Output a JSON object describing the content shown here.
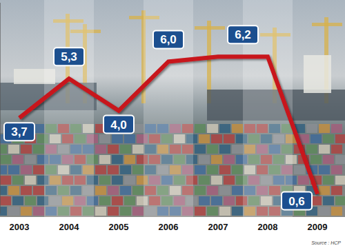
{
  "chart_data": {
    "type": "line",
    "categories": [
      "2003",
      "2004",
      "2005",
      "2006",
      "2007",
      "2008",
      "2009"
    ],
    "values": [
      3.7,
      5.3,
      4.0,
      6.0,
      6.2,
      6.2,
      0.6
    ],
    "value_labels": [
      "3,7",
      "5,3",
      "4,0",
      "6,0",
      "6,2",
      null,
      "0,6"
    ],
    "data_labels": true,
    "color": "#c8141c",
    "ylim": [
      -0.2,
      8.4
    ],
    "tick_labels": "x",
    "grid": false,
    "source": "Source : HCP"
  }
}
